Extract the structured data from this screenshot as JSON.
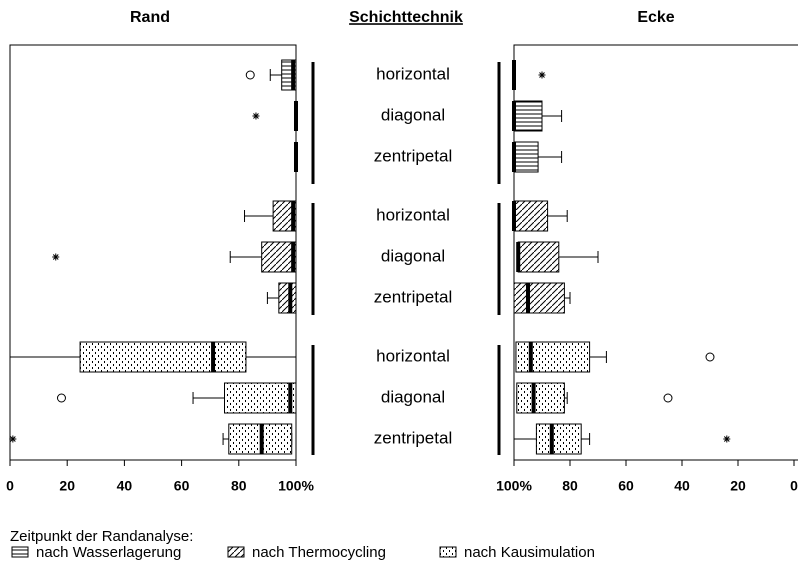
{
  "chart_data": {
    "type": "boxplot",
    "title": "Schichttechnik",
    "categories": [
      "horizontal",
      "diagonal",
      "zentripetal"
    ],
    "legend_title": "Zeitpunkt der Randanalyse:",
    "series": [
      {
        "name": "nach Wasserlagerung",
        "pattern": "horizontal-lines"
      },
      {
        "name": "nach Thermocycling",
        "pattern": "diagonal-lines"
      },
      {
        "name": "nach Kausimulation",
        "pattern": "dots"
      }
    ],
    "panels": [
      {
        "title": "Rand",
        "xlim": [
          0,
          100
        ],
        "xticks": [
          0,
          20,
          40,
          60,
          80,
          {
            "value": 100,
            "label": "100%"
          }
        ],
        "data": [
          {
            "min": [
              91,
              100,
              100
            ],
            "q1": [
              95,
              100,
              100
            ],
            "median": [
              99,
              100,
              100
            ],
            "q3": [
              100,
              100,
              100
            ],
            "max": [
              100,
              100,
              100
            ],
            "outliers": [
              [
                {
                  "value": 84,
                  "marker": "circle"
                }
              ],
              [
                {
                  "value": 86,
                  "marker": "star"
                }
              ],
              []
            ]
          },
          {
            "min": [
              82,
              77,
              90
            ],
            "q1": [
              92,
              88,
              94
            ],
            "median": [
              99,
              99,
              98
            ],
            "q3": [
              100,
              100,
              100
            ],
            "max": [
              100,
              100,
              100
            ],
            "outliers": [
              [],
              [
                {
                  "value": 16,
                  "marker": "star"
                }
              ],
              []
            ]
          },
          {
            "min": [
              0,
              64,
              74.5
            ],
            "q1": [
              24.5,
              75,
              76.5
            ],
            "median": [
              71,
              98,
              88
            ],
            "q3": [
              82.5,
              100,
              98.5
            ],
            "max": [
              100,
              100,
              98.5
            ],
            "outliers": [
              [],
              [
                {
                  "value": 18,
                  "marker": "circle"
                }
              ],
              [
                {
                  "value": 1,
                  "marker": "star"
                }
              ]
            ]
          }
        ]
      },
      {
        "title": "Ecke",
        "xlim": [
          100,
          0
        ],
        "xticks": [
          {
            "value": 100,
            "label": "100%"
          },
          80,
          60,
          40,
          20,
          0
        ],
        "data": [
          {
            "min": [
              100,
              83,
              83
            ],
            "q1": [
              100,
              90,
              91.4
            ],
            "median": [
              100,
              100,
              100
            ],
            "q3": [
              100,
              100,
              100
            ],
            "max": [
              100,
              100,
              100
            ],
            "outliers": [
              [
                {
                  "value": 90,
                  "marker": "star"
                }
              ],
              [],
              []
            ]
          },
          {
            "min": [
              81,
              70,
              80
            ],
            "q1": [
              88,
              84,
              82
            ],
            "median": [
              100,
              98.5,
              95
            ],
            "q3": [
              100,
              98.5,
              100
            ],
            "max": [
              100,
              98.5,
              100
            ],
            "outliers": [
              [],
              [],
              []
            ]
          },
          {
            "min": [
              67,
              81,
              73
            ],
            "q1": [
              73,
              82,
              76
            ],
            "median": [
              94,
              93,
              86.5
            ],
            "q3": [
              99.3,
              99,
              92
            ],
            "max": [
              99.3,
              99,
              100
            ],
            "outliers": [
              [
                {
                  "value": 30,
                  "marker": "circle"
                }
              ],
              [
                {
                  "value": 45,
                  "marker": "circle"
                }
              ],
              [
                {
                  "value": 24,
                  "marker": "star"
                }
              ]
            ]
          }
        ]
      }
    ]
  }
}
